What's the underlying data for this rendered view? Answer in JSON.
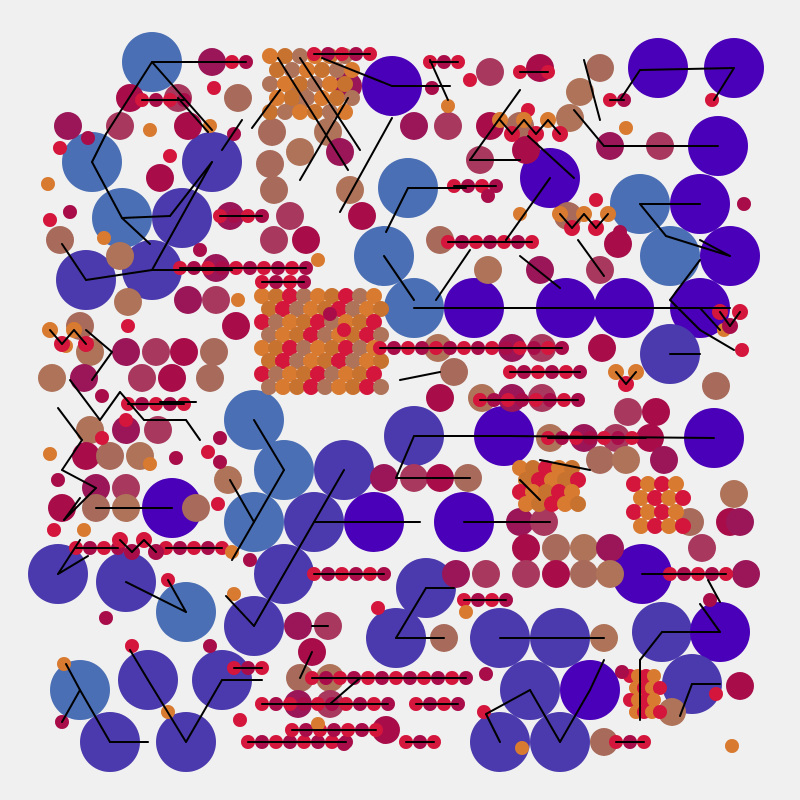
{
  "artwork": {
    "background": "#f0f0f0",
    "line_color": "#000000",
    "palette": {
      "steel_blue": "#4a6fb5",
      "indigo": "#4a3aad",
      "deep_violet": "#4a00b8",
      "plum": "#9a1658",
      "raspberry": "#a80d4a",
      "crimson": "#d4153c",
      "mauve": "#a8385e",
      "clay": "#a86a5a",
      "tan": "#ae7358",
      "ochre": "#c8722f",
      "orange": "#d87a30"
    }
  }
}
